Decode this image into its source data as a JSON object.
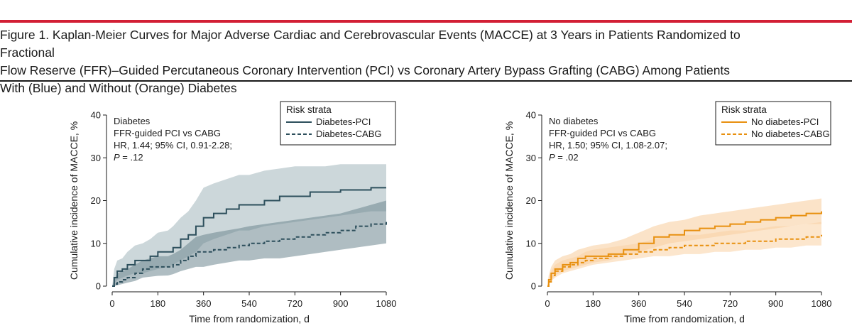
{
  "figure": {
    "title_lines": [
      "Figure 1. Kaplan-Meier Curves for Major Adverse Cardiac and Cerebrovascular Events (MACCE) at 3 Years in Patients Randomized to Fractional",
      "Flow Reserve (FFR)–Guided Percutaneous Coronary Intervention (PCI) vs Coronary Artery Bypass Grafting (CABG) Among Patients",
      "With (Blue) and Without (Orange) Diabetes"
    ],
    "accent_color": "#d21f35"
  },
  "chart_data": [
    {
      "type": "line",
      "title": "",
      "xlabel": "Time from randomization, d",
      "ylabel": "Cumulative incidence of MACCE, %",
      "xlim": [
        0,
        1080
      ],
      "ylim": [
        0,
        40
      ],
      "xticks": [
        0,
        180,
        360,
        540,
        720,
        900,
        1080
      ],
      "yticks": [
        0,
        10,
        20,
        30,
        40
      ],
      "annotation": {
        "line1": "Diabetes",
        "line2": "FFR-guided PCI vs CABG",
        "line3": "HR, 1.44; 95% CI, 0.91-2.28;",
        "p_label": "P",
        "p_value": " = .12"
      },
      "legend": {
        "title": "Risk strata",
        "position": "top-right",
        "items": [
          "Diabetes-PCI",
          "Diabetes-CABG"
        ]
      },
      "series": [
        {
          "name": "Diabetes-PCI",
          "style": "solid",
          "color": "#2d4f5c",
          "band_color": "#8fa6ad",
          "x": [
            0,
            8,
            20,
            40,
            60,
            90,
            120,
            150,
            180,
            220,
            240,
            270,
            300,
            330,
            360,
            400,
            450,
            500,
            540,
            600,
            660,
            720,
            780,
            840,
            900,
            960,
            1020,
            1080
          ],
          "y": [
            0,
            2,
            3.5,
            4,
            5,
            6,
            6,
            7,
            8,
            8,
            9,
            11,
            12,
            14,
            16,
            17,
            18,
            19,
            19,
            20,
            21,
            21,
            22,
            22,
            22.5,
            22.5,
            23,
            23
          ],
          "lower": [
            0,
            0.5,
            1.5,
            2,
            2.5,
            3,
            3,
            3.5,
            4,
            4.5,
            5,
            6,
            7,
            8,
            10,
            11,
            12,
            13,
            13,
            14,
            14.5,
            15,
            15.5,
            16,
            16.5,
            17,
            17.5,
            17.5
          ],
          "upper": [
            0,
            4,
            6,
            6.5,
            8,
            9.5,
            10,
            11,
            12.5,
            13,
            14,
            16,
            17.5,
            20,
            23,
            24,
            25,
            26,
            26,
            27,
            27.5,
            28,
            28,
            28,
            28.5,
            28.5,
            28.5,
            28.5
          ]
        },
        {
          "name": "Diabetes-CABG",
          "style": "dashed",
          "color": "#2d4f5c",
          "band_color": "#6e8790",
          "x": [
            0,
            8,
            20,
            40,
            60,
            90,
            120,
            150,
            180,
            220,
            240,
            270,
            300,
            330,
            360,
            400,
            450,
            500,
            540,
            600,
            660,
            720,
            780,
            840,
            900,
            960,
            1020,
            1080
          ],
          "y": [
            0,
            0.5,
            1,
            1.5,
            2,
            3,
            4,
            4.5,
            4.5,
            4.5,
            5,
            6,
            7,
            8,
            8,
            8.5,
            9,
            9.5,
            10,
            10.5,
            11,
            11.5,
            12,
            12.5,
            13,
            14,
            14.5,
            15
          ],
          "lower": [
            0,
            0,
            0.2,
            0.5,
            0.8,
            1.2,
            2,
            2.2,
            2.4,
            2.5,
            2.8,
            3.5,
            4,
            4.5,
            4.5,
            5,
            5.5,
            6,
            6,
            6.5,
            6.5,
            7,
            7.5,
            8,
            8.5,
            9,
            9.5,
            10
          ],
          "upper": [
            0,
            1.5,
            3,
            3.5,
            4,
            5,
            6,
            6.5,
            7,
            7,
            7.5,
            8.5,
            10,
            11.5,
            12,
            12.5,
            13,
            13.5,
            14,
            14.5,
            15,
            15.5,
            16,
            16.5,
            17,
            18,
            19,
            20
          ]
        }
      ]
    },
    {
      "type": "line",
      "title": "",
      "xlabel": "Time from randomization, d",
      "ylabel": "Cumulative incidence of MACCE, %",
      "xlim": [
        0,
        1080
      ],
      "ylim": [
        0,
        40
      ],
      "xticks": [
        0,
        180,
        360,
        540,
        720,
        900,
        1080
      ],
      "yticks": [
        0,
        10,
        20,
        30,
        40
      ],
      "annotation": {
        "line1": "No diabetes",
        "line2": "FFR-guided PCI vs CABG",
        "line3": "HR, 1.50; 95% CI, 1.08-2.07;",
        "p_label": "P",
        "p_value": " = .02"
      },
      "legend": {
        "title": "Risk strata",
        "position": "top-right",
        "items": [
          "No diabetes-PCI",
          "No diabetes-CABG"
        ]
      },
      "series": [
        {
          "name": "No diabetes-PCI",
          "style": "solid",
          "color": "#e8900f",
          "band_color": "#f6c184",
          "x": [
            0,
            5,
            15,
            30,
            60,
            90,
            120,
            150,
            180,
            240,
            300,
            360,
            420,
            480,
            540,
            600,
            660,
            720,
            780,
            840,
            900,
            960,
            1020,
            1080
          ],
          "y": [
            0,
            1.5,
            3,
            4,
            5,
            5.5,
            6.5,
            7,
            7,
            7.5,
            8.5,
            10,
            11.5,
            12,
            13,
            13.5,
            14,
            14.5,
            15,
            15.5,
            16,
            16.5,
            17,
            17.5
          ],
          "lower": [
            0,
            0.5,
            1.5,
            2.5,
            3.5,
            4,
            4.5,
            5,
            5.5,
            6,
            7,
            8,
            9,
            10,
            10.5,
            11,
            11.5,
            12,
            12.5,
            13,
            13.5,
            14,
            14.5,
            14.5
          ],
          "upper": [
            0,
            2.5,
            4.5,
            6,
            7,
            7.5,
            8.5,
            9,
            9.5,
            10,
            11,
            12.5,
            14,
            15,
            15.5,
            16.5,
            17,
            17.5,
            18,
            18.5,
            19,
            19.5,
            20,
            20.5
          ]
        },
        {
          "name": "No diabetes-CABG",
          "style": "dashed",
          "color": "#e8900f",
          "band_color": "#f9d2a4",
          "x": [
            0,
            5,
            15,
            30,
            60,
            90,
            120,
            150,
            180,
            240,
            300,
            360,
            420,
            480,
            540,
            600,
            660,
            720,
            780,
            840,
            900,
            960,
            1020,
            1080
          ],
          "y": [
            0,
            1,
            2.5,
            3.5,
            4.5,
            5,
            5.5,
            6,
            6.5,
            7,
            7.5,
            8,
            8.5,
            9,
            9.5,
            9.5,
            10,
            10,
            10.5,
            10.5,
            11,
            11,
            11.5,
            12
          ],
          "lower": [
            0,
            0.3,
            1.2,
            2,
            3,
            3.5,
            4,
            4.5,
            5,
            5.5,
            6,
            6.5,
            7,
            7,
            7.5,
            7.5,
            8,
            8,
            8.5,
            8.5,
            9,
            9,
            9.5,
            9.5
          ],
          "upper": [
            0,
            2,
            3.5,
            5,
            6,
            6.5,
            7,
            8,
            8.5,
            9,
            9.5,
            10,
            11,
            11.5,
            12,
            12,
            12.5,
            13,
            13,
            13.5,
            14,
            14,
            14.5,
            15
          ]
        }
      ]
    }
  ]
}
